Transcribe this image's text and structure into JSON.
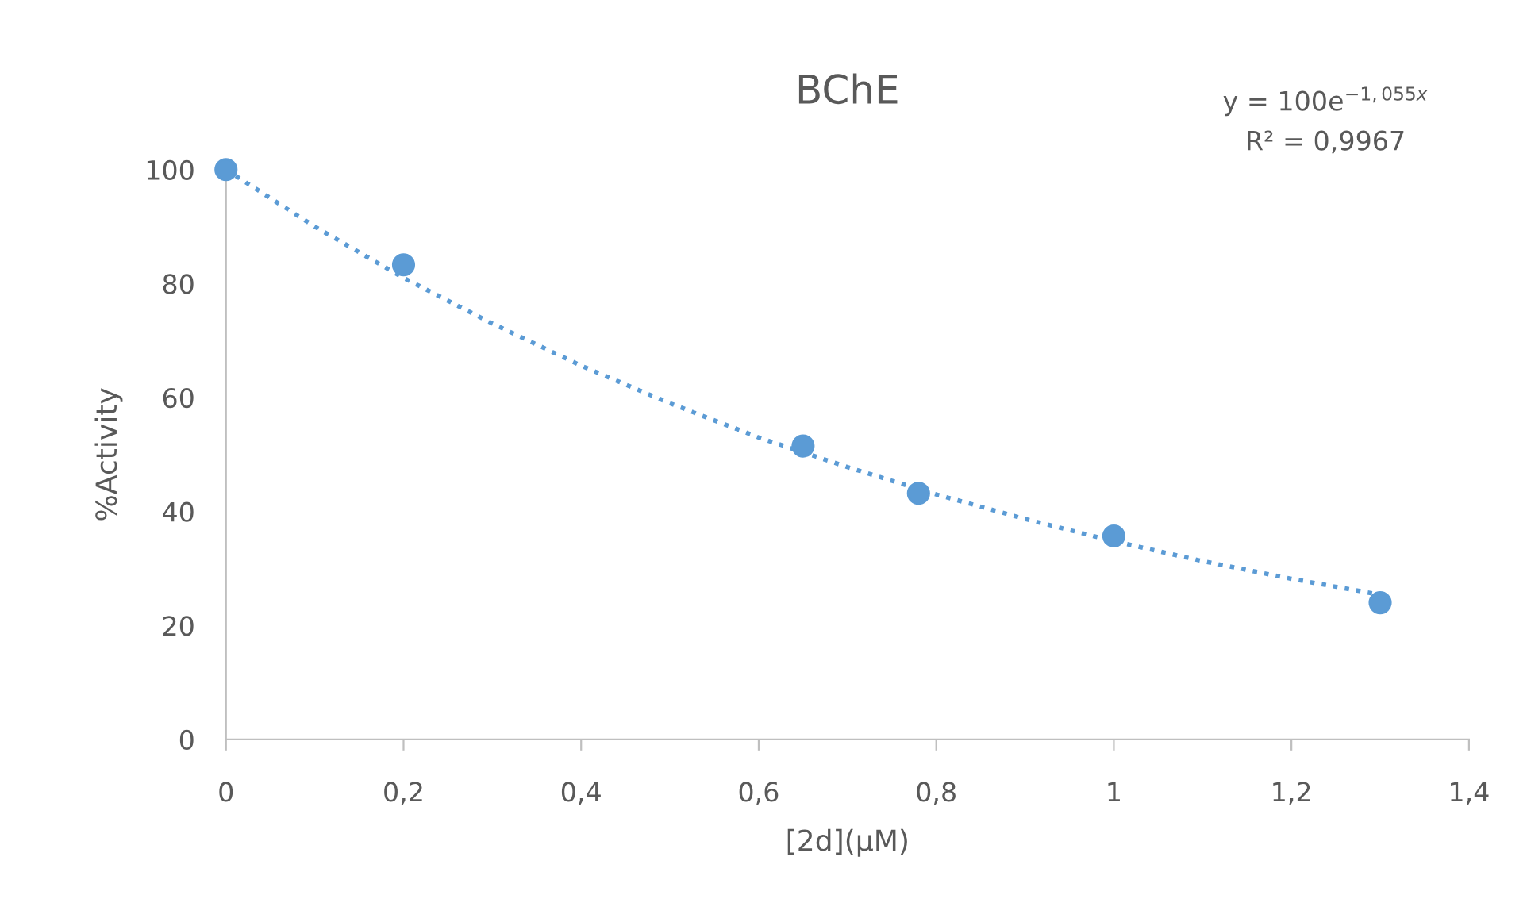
{
  "chart_data": {
    "type": "scatter",
    "title": "BChE",
    "xlabel": "[2d](µM)",
    "ylabel": "%Activity",
    "xlim": [
      0,
      1.4
    ],
    "ylim": [
      0,
      100
    ],
    "xticks": [
      0,
      {
        "value": 0.2,
        "label": "0,2"
      },
      {
        "value": 0.4,
        "label": "0,4"
      },
      {
        "value": 0.6,
        "label": "0,6"
      },
      {
        "value": 0.8,
        "label": "0,8"
      },
      1,
      {
        "value": 1.2,
        "label": "1,2"
      },
      {
        "value": 1.4,
        "label": "1,4"
      }
    ],
    "yticks": [
      0,
      20,
      40,
      60,
      80,
      100
    ],
    "grid": false,
    "legend": false,
    "series": [
      {
        "color": "#5b9bd5",
        "marker": "circle",
        "x": [
          0,
          0.2,
          0.65,
          0.78,
          1.0,
          1.3
        ],
        "values": [
          100,
          83.3,
          51.5,
          43.2,
          35.7,
          24.0
        ]
      },
      {
        "type": "line",
        "color": "#5b9bd5",
        "line_style": "dotted",
        "marker": "none",
        "x": [
          0,
          0.1,
          0.2,
          0.3,
          0.4,
          0.5,
          0.6,
          0.7,
          0.8,
          0.9,
          1.0,
          1.1,
          1.2,
          1.3
        ],
        "values": [
          100,
          90,
          81,
          73,
          65.6,
          59,
          53,
          47.8,
          43,
          38.7,
          34.8,
          31.3,
          28.2,
          25.4
        ]
      }
    ],
    "annotations": [
      "y = 100e$^{−1,055x}$",
      "R² = 0,9967"
    ]
  }
}
